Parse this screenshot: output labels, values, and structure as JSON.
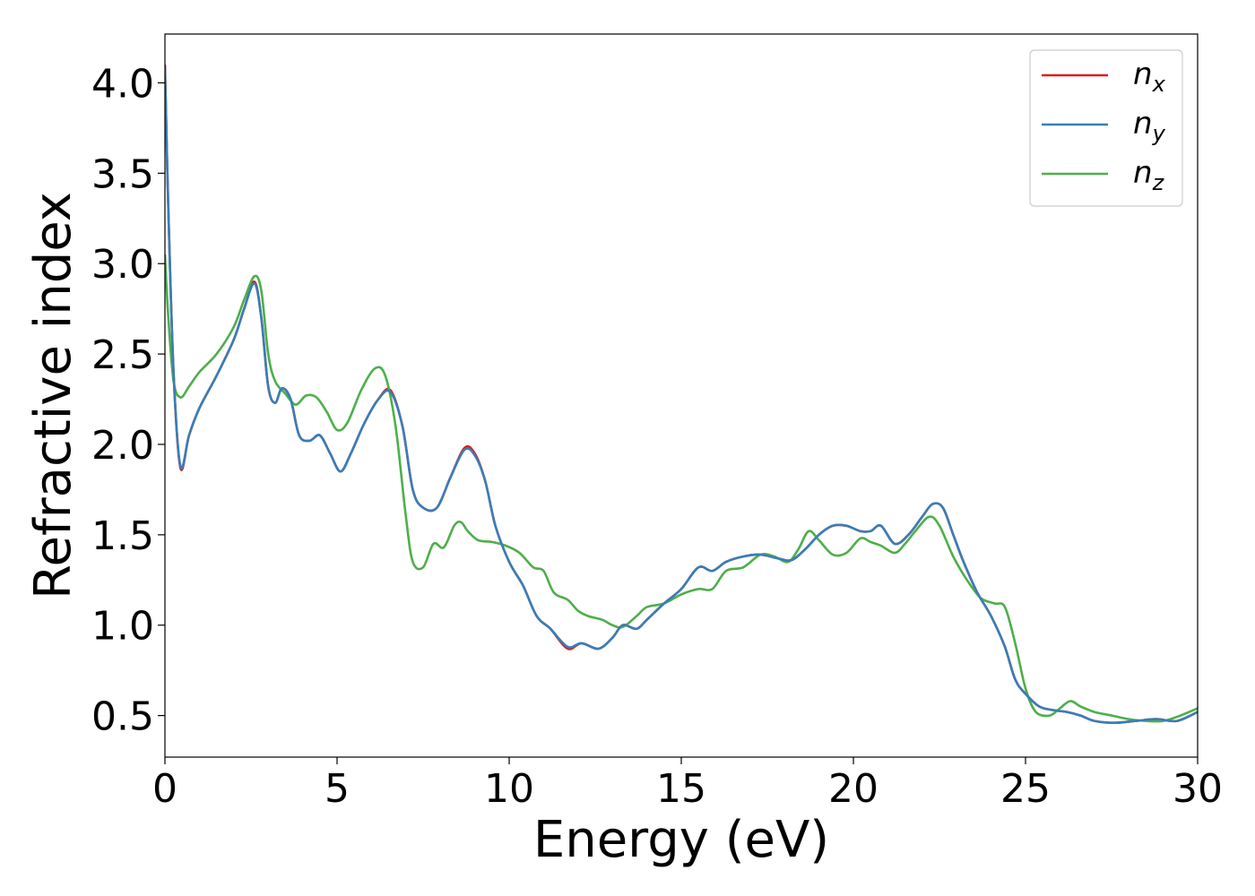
{
  "chart_data": {
    "type": "line",
    "xlabel": "Energy (eV)",
    "ylabel": "Refractive index",
    "xlim": [
      0,
      30
    ],
    "ylim": [
      0.27,
      4.27
    ],
    "xticks": [
      0,
      5,
      10,
      15,
      20,
      25,
      30
    ],
    "xtick_labels": [
      "0",
      "5",
      "10",
      "15",
      "20",
      "25",
      "30"
    ],
    "yticks": [
      0.5,
      1.0,
      1.5,
      2.0,
      2.5,
      3.0,
      3.5,
      4.0
    ],
    "ytick_labels": [
      "0.5",
      "1.0",
      "1.5",
      "2.0",
      "2.5",
      "3.0",
      "3.5",
      "4.0"
    ],
    "grid": false,
    "legend_position": "top-right",
    "series": [
      {
        "name": "n_x",
        "legend_base": "n",
        "legend_sub": "x",
        "color": "#e41a1c",
        "x": [
          0,
          0.1,
          0.25,
          0.45,
          0.7,
          1.0,
          1.5,
          2.0,
          2.3,
          2.6,
          2.8,
          3.0,
          3.2,
          3.4,
          3.65,
          3.9,
          4.2,
          4.5,
          4.8,
          5.1,
          5.4,
          5.8,
          6.2,
          6.55,
          6.9,
          7.2,
          7.5,
          7.9,
          8.3,
          8.7,
          9.0,
          9.3,
          9.6,
          10.0,
          10.4,
          10.8,
          11.2,
          11.7,
          12.1,
          12.6,
          13.0,
          13.3,
          13.7,
          14.0,
          14.5,
          15.0,
          15.5,
          15.9,
          16.3,
          16.8,
          17.3,
          17.8,
          18.2,
          18.6,
          19.0,
          19.4,
          19.8,
          20.2,
          20.5,
          20.8,
          21.2,
          21.6,
          22.0,
          22.3,
          22.6,
          22.9,
          23.2,
          23.6,
          24.0,
          24.4,
          24.7,
          25.0,
          25.4,
          25.8,
          26.2,
          26.6,
          27.0,
          27.6,
          28.2,
          28.8,
          29.4,
          30.0
        ],
        "values": [
          4.1,
          3.3,
          2.4,
          1.87,
          2.05,
          2.2,
          2.38,
          2.58,
          2.75,
          2.9,
          2.7,
          2.32,
          2.23,
          2.31,
          2.25,
          2.05,
          2.02,
          2.05,
          1.95,
          1.85,
          1.95,
          2.12,
          2.25,
          2.3,
          2.1,
          1.75,
          1.65,
          1.65,
          1.82,
          1.98,
          1.95,
          1.8,
          1.55,
          1.35,
          1.22,
          1.05,
          0.98,
          0.87,
          0.9,
          0.87,
          0.93,
          1.0,
          0.98,
          1.03,
          1.12,
          1.2,
          1.32,
          1.3,
          1.35,
          1.38,
          1.39,
          1.37,
          1.36,
          1.42,
          1.5,
          1.55,
          1.55,
          1.52,
          1.52,
          1.55,
          1.45,
          1.5,
          1.6,
          1.67,
          1.65,
          1.5,
          1.35,
          1.18,
          1.05,
          0.88,
          0.7,
          0.62,
          0.55,
          0.53,
          0.52,
          0.5,
          0.47,
          0.46,
          0.47,
          0.48,
          0.47,
          0.52
        ]
      },
      {
        "name": "n_y",
        "legend_base": "n",
        "legend_sub": "y",
        "color": "#377eb8",
        "x": [
          0,
          0.1,
          0.25,
          0.45,
          0.7,
          1.0,
          1.5,
          2.0,
          2.3,
          2.6,
          2.8,
          3.0,
          3.2,
          3.4,
          3.65,
          3.9,
          4.2,
          4.5,
          4.8,
          5.1,
          5.4,
          5.8,
          6.2,
          6.55,
          6.9,
          7.2,
          7.5,
          7.9,
          8.3,
          8.7,
          9.0,
          9.3,
          9.6,
          10.0,
          10.4,
          10.8,
          11.2,
          11.7,
          12.1,
          12.6,
          13.0,
          13.3,
          13.7,
          14.0,
          14.5,
          15.0,
          15.5,
          15.9,
          16.3,
          16.8,
          17.3,
          17.8,
          18.2,
          18.6,
          19.0,
          19.4,
          19.8,
          20.2,
          20.5,
          20.8,
          21.2,
          21.6,
          22.0,
          22.3,
          22.6,
          22.9,
          23.2,
          23.6,
          24.0,
          24.4,
          24.7,
          25.0,
          25.4,
          25.8,
          26.2,
          26.6,
          27.0,
          27.6,
          28.2,
          28.8,
          29.4,
          30.0
        ],
        "values": [
          4.08,
          3.3,
          2.4,
          1.88,
          2.05,
          2.2,
          2.38,
          2.58,
          2.75,
          2.89,
          2.7,
          2.32,
          2.23,
          2.31,
          2.25,
          2.05,
          2.02,
          2.05,
          1.95,
          1.85,
          1.95,
          2.12,
          2.25,
          2.29,
          2.1,
          1.75,
          1.65,
          1.65,
          1.82,
          1.97,
          1.94,
          1.8,
          1.55,
          1.35,
          1.22,
          1.05,
          0.98,
          0.88,
          0.9,
          0.87,
          0.93,
          1.0,
          0.98,
          1.03,
          1.12,
          1.2,
          1.32,
          1.3,
          1.35,
          1.38,
          1.39,
          1.37,
          1.36,
          1.42,
          1.5,
          1.55,
          1.55,
          1.52,
          1.52,
          1.55,
          1.45,
          1.5,
          1.6,
          1.67,
          1.65,
          1.5,
          1.35,
          1.18,
          1.05,
          0.88,
          0.7,
          0.62,
          0.55,
          0.53,
          0.52,
          0.5,
          0.47,
          0.46,
          0.47,
          0.48,
          0.47,
          0.52
        ]
      },
      {
        "name": "n_z",
        "legend_base": "n",
        "legend_sub": "z",
        "color": "#4daf4a",
        "x": [
          0,
          0.1,
          0.25,
          0.45,
          0.7,
          1.0,
          1.5,
          2.0,
          2.3,
          2.6,
          2.8,
          3.0,
          3.2,
          3.5,
          3.8,
          4.1,
          4.4,
          4.7,
          5.0,
          5.3,
          5.7,
          6.1,
          6.4,
          6.7,
          7.0,
          7.2,
          7.5,
          7.8,
          8.1,
          8.4,
          8.6,
          8.8,
          9.1,
          9.5,
          9.9,
          10.3,
          10.7,
          11.0,
          11.3,
          11.7,
          12.0,
          12.3,
          12.7,
          13.0,
          13.3,
          13.7,
          14.0,
          14.5,
          15.0,
          15.5,
          15.9,
          16.3,
          16.8,
          17.3,
          17.7,
          18.1,
          18.4,
          18.7,
          19.0,
          19.4,
          19.8,
          20.2,
          20.5,
          20.8,
          21.2,
          21.5,
          21.8,
          22.2,
          22.5,
          22.9,
          23.3,
          23.7,
          24.1,
          24.4,
          24.7,
          25.0,
          25.3,
          25.7,
          26.0,
          26.3,
          26.6,
          27.0,
          27.5,
          28.0,
          28.5,
          29.0,
          29.5,
          30.0
        ],
        "values": [
          3.05,
          2.7,
          2.35,
          2.26,
          2.32,
          2.4,
          2.5,
          2.65,
          2.8,
          2.93,
          2.85,
          2.5,
          2.35,
          2.28,
          2.22,
          2.27,
          2.26,
          2.18,
          2.08,
          2.12,
          2.3,
          2.42,
          2.38,
          2.1,
          1.6,
          1.35,
          1.32,
          1.45,
          1.43,
          1.55,
          1.57,
          1.52,
          1.47,
          1.46,
          1.44,
          1.4,
          1.32,
          1.3,
          1.18,
          1.14,
          1.08,
          1.05,
          1.03,
          1.0,
          0.99,
          1.05,
          1.1,
          1.12,
          1.17,
          1.2,
          1.2,
          1.3,
          1.32,
          1.39,
          1.38,
          1.35,
          1.42,
          1.52,
          1.47,
          1.39,
          1.4,
          1.48,
          1.46,
          1.44,
          1.4,
          1.45,
          1.52,
          1.6,
          1.55,
          1.38,
          1.25,
          1.15,
          1.12,
          1.1,
          0.9,
          0.65,
          0.52,
          0.5,
          0.54,
          0.58,
          0.55,
          0.52,
          0.5,
          0.48,
          0.47,
          0.47,
          0.5,
          0.54
        ]
      }
    ]
  }
}
